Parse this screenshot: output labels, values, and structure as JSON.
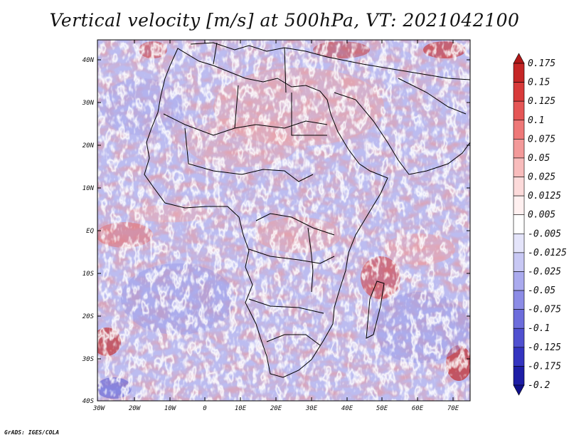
{
  "title": "Vertical velocity [m/s] at 500hPa, VT: 2021042100",
  "credit": "GrADS: IGES/COLA",
  "map": {
    "region": "Africa",
    "lon_range": [
      -30,
      75
    ],
    "lat_range": [
      -40,
      45
    ],
    "lat_ticks": [
      "40N",
      "30N",
      "20N",
      "10N",
      "EQ",
      "10S",
      "20S",
      "30S",
      "40S"
    ],
    "lon_ticks": [
      "30W",
      "20W",
      "10W",
      "0",
      "10E",
      "20E",
      "30E",
      "40E",
      "50E",
      "60E",
      "70E"
    ]
  },
  "colorbar": {
    "labels": [
      "0.175",
      "0.15",
      "0.125",
      "0.1",
      "0.075",
      "0.05",
      "0.025",
      "0.0125",
      "0.005",
      "-0.005",
      "-0.0125",
      "-0.025",
      "-0.05",
      "-0.075",
      "-0.1",
      "-0.125",
      "-0.175",
      "-0.2"
    ],
    "colors": [
      "#b01818",
      "#c52626",
      "#d83a3a",
      "#e55656",
      "#ee7878",
      "#f39a9a",
      "#f8bcbc",
      "#fcdada",
      "#fff0f0",
      "#ffffff",
      "#e4e4fa",
      "#c8c8f4",
      "#aaaaee",
      "#8c8ce6",
      "#6d6ddc",
      "#5050d0",
      "#3434c0",
      "#1e1ea6",
      "#10108a"
    ]
  }
}
